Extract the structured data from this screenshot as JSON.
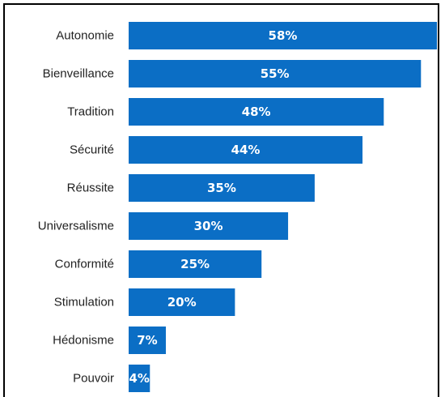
{
  "chart_data": {
    "type": "bar",
    "orientation": "horizontal",
    "categories": [
      "Autonomie",
      "Bienveillance",
      "Tradition",
      "Sécurité",
      "Réussite",
      "Universalisme",
      "Conformité",
      "Stimulation",
      "Hédonisme",
      "Pouvoir"
    ],
    "values": [
      58,
      55,
      48,
      44,
      35,
      30,
      25,
      20,
      7,
      4
    ],
    "data_labels": [
      "58%",
      "55%",
      "48%",
      "44%",
      "35%",
      "30%",
      "25%",
      "20%",
      "7%",
      "4%"
    ],
    "title": "",
    "xlabel": "",
    "ylabel": "",
    "xlim": [
      0,
      60
    ],
    "grid": false,
    "bar_color": "#0b6ec5",
    "label_color": "#ffffff"
  }
}
